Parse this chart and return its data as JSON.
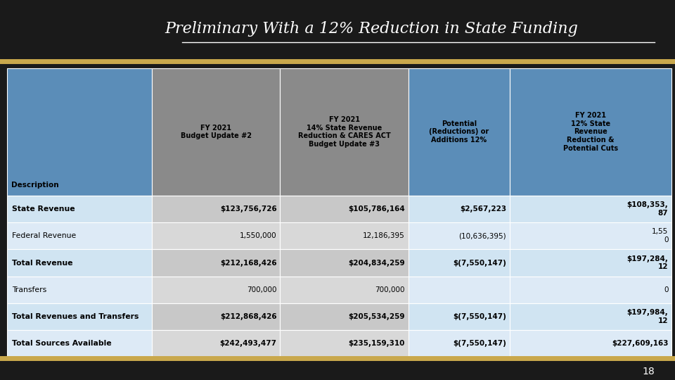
{
  "title": "Preliminary With a 12% Reduction in State Funding",
  "background_color": "#1a1a1a",
  "gold_color": "#c9a84c",
  "col_header_bg": [
    "#5b8db8",
    "#8a8a8a",
    "#8a8a8a",
    "#5b8db8",
    "#5b8db8"
  ],
  "header_texts": [
    "Description",
    "FY 2021\nBudget Update #2",
    "FY 2021\n14% State Revenue\nReduction & CARES ACT\nBudget Update #3",
    "Potential\n(Reductions) or\nAdditions 12%",
    "FY 2021\n12% State\nRevenue\nReduction &\nPotential Cuts"
  ],
  "rows": [
    {
      "label": "State Revenue",
      "bold": true,
      "values": [
        "$123,756,726",
        "$105,786,164",
        "$2,567,223",
        "$108,353,\n87"
      ]
    },
    {
      "label": "Federal Revenue",
      "bold": false,
      "values": [
        "1,550,000",
        "12,186,395",
        "(10,636,395)",
        "1,55\n0"
      ]
    },
    {
      "label": "Total Revenue",
      "bold": true,
      "values": [
        "$212,168,426",
        "$204,834,259",
        "$(7,550,147)",
        "$197,284,\n12"
      ]
    },
    {
      "label": "Transfers",
      "bold": false,
      "values": [
        "700,000",
        "700,000",
        "",
        "0"
      ]
    },
    {
      "label": "Total Revenues and Transfers",
      "bold": true,
      "values": [
        "$212,868,426",
        "$205,534,259",
        "$(7,550,147)",
        "$197,984,\n12"
      ]
    },
    {
      "label": "Total Sources Available",
      "bold": true,
      "values": [
        "$242,493,477",
        "$235,159,310",
        "$(7,550,147)",
        "$227,609,163"
      ]
    }
  ],
  "light_blue": "#d0e4f2",
  "lighter_blue": "#ddeaf6",
  "light_gray": "#c8c8c8",
  "lighter_gray": "#d8d8d8",
  "page_number": "18"
}
